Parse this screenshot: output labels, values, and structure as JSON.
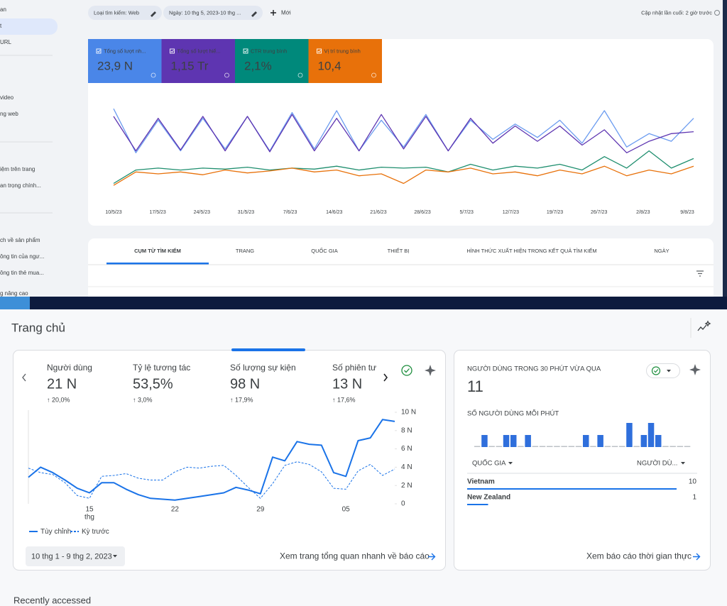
{
  "gsc": {
    "sidebar": [
      "an",
      "t",
      "URL",
      "video",
      "ng web",
      "iệm trên trang",
      "an trọng chính...",
      "ch về sản phẩm",
      "ông tin của ngư...",
      "ông tin thẻ mua...",
      "g nâng cao"
    ],
    "sidebar_selected": 1,
    "filters": [
      "Loại tìm kiếm: Web",
      "Ngày: 10 thg 5, 2023-10 thg ..."
    ],
    "new_button": "Mới",
    "last_updated": "Cập nhật lần cuối: 2 giờ trước",
    "metrics": [
      {
        "label": "Tổng số lượt nh...",
        "value": "23,9 N",
        "color": "#4a86e8"
      },
      {
        "label": "Tổng số lượt hiể...",
        "value": "1,15 Tr",
        "color": "#5e35b1"
      },
      {
        "label": "CTR trung bình",
        "value": "2,1%",
        "color": "#00897b"
      },
      {
        "label": "Vị trí trung bình",
        "value": "10,4",
        "color": "#e8710a"
      }
    ],
    "chart": {
      "type": "line",
      "xtick_labels": [
        "10/5/23",
        "17/5/23",
        "24/5/23",
        "31/5/23",
        "7/6/23",
        "14/6/23",
        "21/6/23",
        "28/6/23",
        "5/7/23",
        "12/7/23",
        "19/7/23",
        "26/7/23",
        "2/8/23",
        "9/8/23"
      ],
      "series": [
        {
          "color": "#6b9cf0",
          "values": [
            88,
            42,
            76,
            44,
            78,
            46,
            80,
            44,
            84,
            46,
            86,
            44,
            76,
            48,
            82,
            44,
            76,
            56,
            72,
            58,
            76,
            52,
            86,
            48,
            62,
            54,
            78
          ]
        },
        {
          "color": "#5e35b1",
          "values": [
            80,
            44,
            78,
            45,
            80,
            44,
            80,
            43,
            82,
            44,
            78,
            44,
            82,
            46,
            80,
            44,
            78,
            52,
            70,
            54,
            70,
            50,
            66,
            42,
            54,
            62,
            64
          ]
        },
        {
          "color": "#1e8e6e",
          "values": [
            10,
            24,
            26,
            24,
            26,
            25,
            27,
            24,
            26,
            25,
            28,
            24,
            27,
            26,
            27,
            22,
            30,
            24,
            28,
            26,
            30,
            24,
            38,
            26,
            44,
            26,
            36
          ]
        },
        {
          "color": "#e8710a",
          "values": [
            8,
            22,
            20,
            22,
            19,
            24,
            21,
            23,
            26,
            22,
            24,
            18,
            20,
            10,
            24,
            22,
            26,
            20,
            22,
            18,
            24,
            20,
            28,
            18,
            24,
            20,
            28
          ]
        }
      ]
    },
    "tabs": [
      "CỤM TỪ TÌM KIẾM",
      "TRANG",
      "QUỐC GIA",
      "THIẾT BỊ",
      "HÌNH THỨC XUẤT HIỆN TRONG KẾT QUẢ TÌM KIẾM",
      "NGÀY"
    ],
    "active_tab": 0
  },
  "ga": {
    "title": "Trang chủ",
    "metrics": [
      {
        "label": "Người dùng",
        "value": "21 N",
        "change": "↑ 20,0%"
      },
      {
        "label": "Tỷ lệ tương tác",
        "value": "53,5%",
        "change": "↑ 3,0%"
      },
      {
        "label": "Số lượng sự kiện",
        "value": "98 N",
        "change": "↑ 17,9%"
      },
      {
        "label": "Số phiên tư",
        "value": "13 N",
        "change": "↑ 17,6%"
      }
    ],
    "active_metric": 2,
    "chart": {
      "type": "line",
      "categories": [
        null,
        null,
        null,
        null,
        null,
        "15",
        null,
        null,
        null,
        null,
        null,
        null,
        "22",
        null,
        null,
        null,
        null,
        null,
        null,
        "29",
        null,
        null,
        null,
        null,
        null,
        null,
        "05",
        null,
        null,
        null,
        null
      ],
      "x_sublabel": "thg",
      "ylim": [
        0,
        10000
      ],
      "yticks": [
        0,
        {
          "value": 2000,
          "label": "2 N"
        },
        {
          "value": 4000,
          "label": "4 N"
        },
        {
          "value": 6000,
          "label": "6 N"
        },
        {
          "value": 8000,
          "label": "8 N"
        },
        {
          "value": 10000,
          "label": "10 N"
        }
      ],
      "series": [
        {
          "name": "Tùy chỉnh",
          "color": "#1a73e8",
          "dashed": false,
          "values": [
            2900,
            4000,
            3400,
            2600,
            1700,
            1200,
            2300,
            2300,
            1600,
            1000,
            600,
            500,
            400,
            600,
            800,
            1000,
            1200,
            1800,
            1500,
            1100,
            5100,
            4700,
            6800,
            6500,
            6400,
            3400,
            3000,
            6900,
            7200,
            9200,
            9000
          ]
        },
        {
          "name": "Kỳ trước",
          "color": "#1a73e8",
          "dashed": true,
          "values": [
            3900,
            3400,
            3200,
            2300,
            900,
            600,
            3000,
            3100,
            3300,
            2800,
            2600,
            2600,
            3500,
            4000,
            3900,
            4100,
            4200,
            3100,
            1800,
            600,
            2200,
            4200,
            4600,
            4300,
            3500,
            1700,
            1600,
            3600,
            4300,
            3100,
            3800
          ]
        }
      ]
    },
    "date_range": "10 thg 1 - 9 thg 2, 2023",
    "overview_link": "Xem trang tổng quan nhanh về báo cáo",
    "realtime": {
      "title": "NGƯỜI DÙNG TRONG 30 PHÚT VỪA QUA",
      "value": "11",
      "per_minute_label": "SỐ NGƯỜI DÙNG MỖI PHÚT",
      "per_minute": {
        "type": "bar",
        "color": "#2f6fdc",
        "values": [
          0,
          1,
          0,
          0,
          1,
          1,
          0,
          1,
          0,
          0,
          0,
          0,
          0,
          0,
          0,
          1,
          0,
          1,
          0,
          0,
          0,
          2,
          0,
          1,
          2,
          1,
          0,
          0,
          0,
          0
        ]
      },
      "col_country": "QUỐC GIA",
      "col_users": "NGƯỜI DÙ...",
      "rows": [
        {
          "country": "Vietnam",
          "users": 10
        },
        {
          "country": "New Zealand",
          "users": 1
        }
      ],
      "link": "Xem báo cáo thời gian thực"
    },
    "recent": "Recently accessed"
  }
}
